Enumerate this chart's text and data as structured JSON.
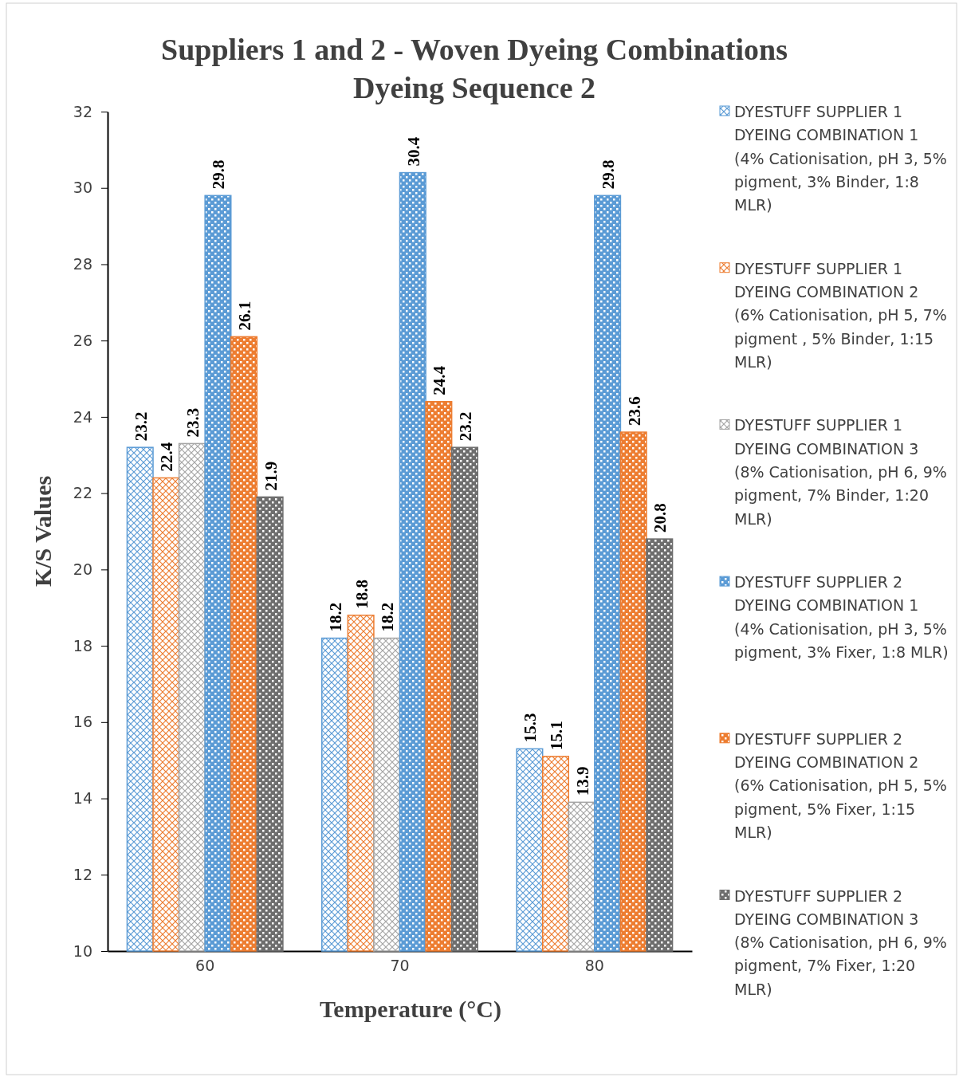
{
  "chart_data": {
    "type": "bar",
    "title": "Suppliers 1 and 2 - Woven Dyeing Combinations\nDyeing Sequence 2",
    "xlabel": "Temperature (°C)",
    "ylabel": "K/S Values",
    "categories": [
      "60",
      "70",
      "80"
    ],
    "ylim": [
      10,
      32
    ],
    "yticks": [
      10,
      12,
      14,
      16,
      18,
      20,
      22,
      24,
      26,
      28,
      30,
      32
    ],
    "grid": false,
    "legend": "right",
    "data_labels": true,
    "series": [
      {
        "name": "DYESTUFF SUPPLIER 1 DYEING COMBINATION 1 (4% Cationisation, pH 3, 5% pigment, 3% Binder, 1:8 MLR)",
        "color": "#5b9bd5",
        "values": [
          23.2,
          18.2,
          15.3
        ]
      },
      {
        "name": "DYESTUFF SUPPLIER 1 DYEING COMBINATION 2 (6% Cationisation, pH 5, 7% pigment , 5% Binder, 1:15 MLR)",
        "color": "#ed7d31",
        "values": [
          22.4,
          18.8,
          15.1
        ]
      },
      {
        "name": "DYESTUFF SUPPLIER 1 DYEING COMBINATION 3 (8% Cationisation, pH 6, 9% pigment, 7% Binder, 1:20 MLR)",
        "color": "#a5a5a5",
        "values": [
          23.3,
          18.2,
          13.9
        ]
      },
      {
        "name": "DYESTUFF SUPPLIER 2 DYEING COMBINATION 1 (4% Cationisation, pH 3, 5% pigment, 3% Fixer, 1:8 MLR)",
        "color": "#5b9bd5",
        "values": [
          29.8,
          30.4,
          29.8
        ]
      },
      {
        "name": "DYESTUFF SUPPLIER 2 DYEING COMBINATION 2 (6% Cationisation, pH 5, 5% pigment, 5% Fixer, 1:15 MLR)",
        "color": "#ed7d31",
        "values": [
          26.1,
          24.4,
          23.6
        ]
      },
      {
        "name": "DYESTUFF SUPPLIER 2 DYEING COMBINATION 3 (8% Cationisation, pH 6, 9% pigment, 7% Fixer, 1:20 MLR)",
        "color": "#6e6e6e",
        "values": [
          21.9,
          23.2,
          20.8
        ]
      }
    ]
  }
}
